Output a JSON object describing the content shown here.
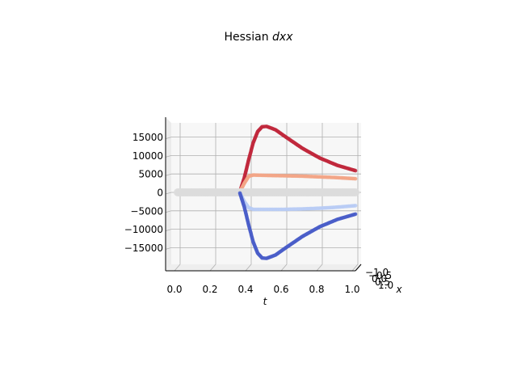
{
  "chart_data": {
    "type": "scatter",
    "projection": "3d",
    "title_prefix": "Hessian ",
    "title_math": "dxx",
    "t_label": "t",
    "x_label": "x",
    "z_ticks": [
      -15000,
      -10000,
      -5000,
      0,
      5000,
      10000,
      15000
    ],
    "z_tick_labels": [
      "−15000",
      "−10000",
      "−5000",
      "0",
      "5000",
      "10000",
      "15000"
    ],
    "t_ticks": [
      0.0,
      0.2,
      0.4,
      0.6,
      0.8,
      1.0
    ],
    "t_tick_labels": [
      "0.0",
      "0.2",
      "0.4",
      "0.6",
      "0.8",
      "1.0"
    ],
    "x_tick_labels": [
      "−1.0",
      "−0.5",
      "0.0",
      "0.5",
      "1.0"
    ],
    "t_lim": [
      0.0,
      1.0
    ],
    "z_lim": [
      -19000,
      19000
    ],
    "grid": true,
    "colormap": "coolwarm",
    "series": [
      {
        "values": [
          [
            0.35,
            200
          ],
          [
            0.375,
            4000
          ],
          [
            0.4,
            9000
          ],
          [
            0.425,
            13500
          ],
          [
            0.45,
            16500
          ],
          [
            0.475,
            17800
          ],
          [
            0.5,
            17900
          ],
          [
            0.55,
            17000
          ],
          [
            0.6,
            15300
          ],
          [
            0.7,
            12000
          ],
          [
            0.8,
            9300
          ],
          [
            0.9,
            7300
          ],
          [
            1.0,
            5900
          ]
        ],
        "color": "#c0283c"
      },
      {
        "values": [
          [
            0.35,
            200
          ],
          [
            0.375,
            2500
          ],
          [
            0.4,
            4400
          ],
          [
            0.425,
            4700
          ],
          [
            0.5,
            4600
          ],
          [
            0.6,
            4500
          ],
          [
            0.7,
            4400
          ],
          [
            0.8,
            4200
          ],
          [
            0.9,
            4000
          ],
          [
            1.0,
            3700
          ]
        ],
        "color": "#f3a586"
      },
      {
        "values": [
          [
            0.0,
            0
          ],
          [
            0.2,
            0
          ],
          [
            0.35,
            0
          ],
          [
            0.5,
            0
          ],
          [
            0.7,
            0
          ],
          [
            0.9,
            0
          ],
          [
            1.0,
            0
          ]
        ],
        "color": "#dcdcdc"
      },
      {
        "values": [
          [
            0.35,
            -200
          ],
          [
            0.375,
            -2500
          ],
          [
            0.4,
            -4200
          ],
          [
            0.425,
            -4600
          ],
          [
            0.5,
            -4600
          ],
          [
            0.6,
            -4600
          ],
          [
            0.7,
            -4500
          ],
          [
            0.8,
            -4300
          ],
          [
            0.9,
            -4000
          ],
          [
            1.0,
            -3600
          ]
        ],
        "color": "#b8ccf5"
      },
      {
        "values": [
          [
            0.35,
            -200
          ],
          [
            0.375,
            -4000
          ],
          [
            0.4,
            -9000
          ],
          [
            0.425,
            -13500
          ],
          [
            0.45,
            -16500
          ],
          [
            0.475,
            -17800
          ],
          [
            0.5,
            -17900
          ],
          [
            0.55,
            -17000
          ],
          [
            0.6,
            -15300
          ],
          [
            0.7,
            -12000
          ],
          [
            0.8,
            -9300
          ],
          [
            0.9,
            -7300
          ],
          [
            1.0,
            -5900
          ]
        ],
        "color": "#4a5dc8"
      }
    ]
  }
}
